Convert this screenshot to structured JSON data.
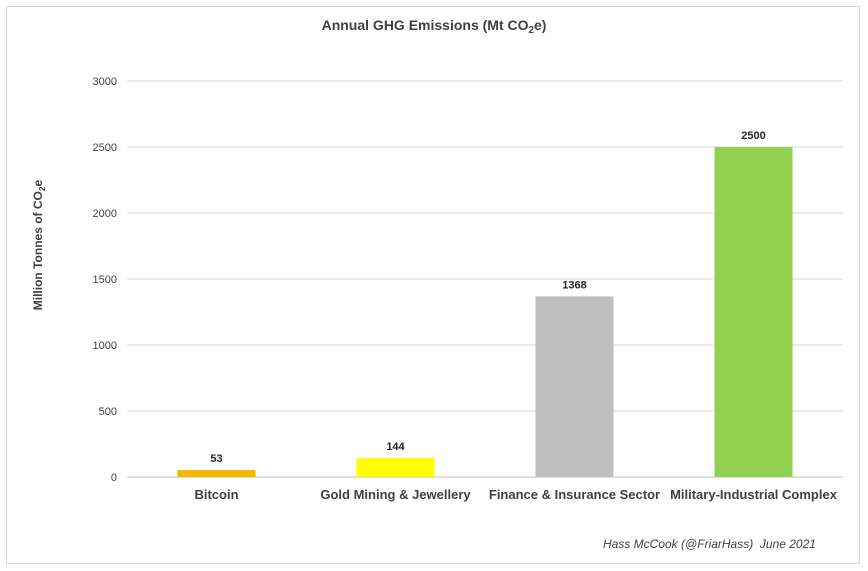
{
  "chart_data": {
    "type": "bar",
    "title": "Annual GHG Emissions (Mt CO₂e)",
    "title_parts": {
      "before": "Annual GHG Emissions (Mt CO",
      "sub": "2",
      "after": "e)"
    },
    "ylabel": "Million Tonnes of CO₂e",
    "ylabel_parts": {
      "before": "Million Tonnes of CO",
      "sub": "2",
      "after": "e"
    },
    "xlabel": "",
    "ylim": [
      0,
      3000
    ],
    "yticks": [
      0,
      500,
      1000,
      1500,
      2000,
      2500,
      3000
    ],
    "grid": true,
    "legend": "none",
    "categories": [
      "Bitcoin",
      "Gold Mining & Jewellery",
      "Finance & Insurance Sector",
      "Military-Industrial Complex"
    ],
    "values": [
      53,
      144,
      1368,
      2500
    ],
    "colors": [
      "#f5b700",
      "#ffff00",
      "#bfbfbf",
      "#92d050"
    ],
    "data_labels": [
      "53",
      "144",
      "1368",
      "2500"
    ]
  },
  "credit": "Hass McCook (@FriarHass)  June 2021"
}
